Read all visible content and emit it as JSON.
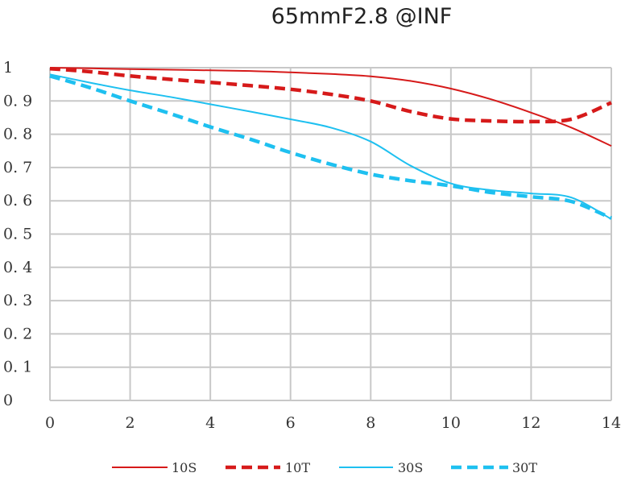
{
  "chart_data": {
    "type": "line",
    "title": "65mmF2.8 @INF",
    "xlabel": "",
    "ylabel": "",
    "xlim": [
      0,
      14
    ],
    "ylim": [
      0,
      1
    ],
    "grid": true,
    "legend_position": "bottom",
    "x_ticks": [
      "0",
      "2",
      "4",
      "6",
      "8",
      "10",
      "12",
      "14"
    ],
    "y_ticks": [
      "0",
      "0. 1",
      "0. 2",
      "0. 3",
      "0. 4",
      "0. 5",
      "0. 6",
      "0. 7",
      "0. 8",
      "0. 9",
      "1"
    ],
    "x": [
      0,
      1,
      2,
      3,
      4,
      5,
      6,
      7,
      8,
      9,
      10,
      11,
      12,
      13,
      14
    ],
    "series": [
      {
        "name": "10S",
        "color": "#d61a1a",
        "style": "solid",
        "values": [
          1.0,
          0.998,
          0.996,
          0.994,
          0.992,
          0.99,
          0.986,
          0.981,
          0.974,
          0.96,
          0.937,
          0.905,
          0.865,
          0.82,
          0.765
        ]
      },
      {
        "name": "10T",
        "color": "#d61a1a",
        "style": "dashed",
        "values": [
          0.997,
          0.988,
          0.975,
          0.965,
          0.956,
          0.946,
          0.935,
          0.92,
          0.9,
          0.868,
          0.846,
          0.84,
          0.838,
          0.845,
          0.895
        ]
      },
      {
        "name": "30S",
        "color": "#1ec0f0",
        "style": "solid",
        "values": [
          0.98,
          0.955,
          0.932,
          0.912,
          0.89,
          0.868,
          0.845,
          0.82,
          0.778,
          0.705,
          0.652,
          0.632,
          0.622,
          0.61,
          0.545
        ]
      },
      {
        "name": "30T",
        "color": "#1ec0f0",
        "style": "dashed",
        "values": [
          0.975,
          0.94,
          0.9,
          0.862,
          0.822,
          0.785,
          0.745,
          0.71,
          0.68,
          0.66,
          0.645,
          0.625,
          0.612,
          0.598,
          0.548
        ]
      }
    ]
  }
}
